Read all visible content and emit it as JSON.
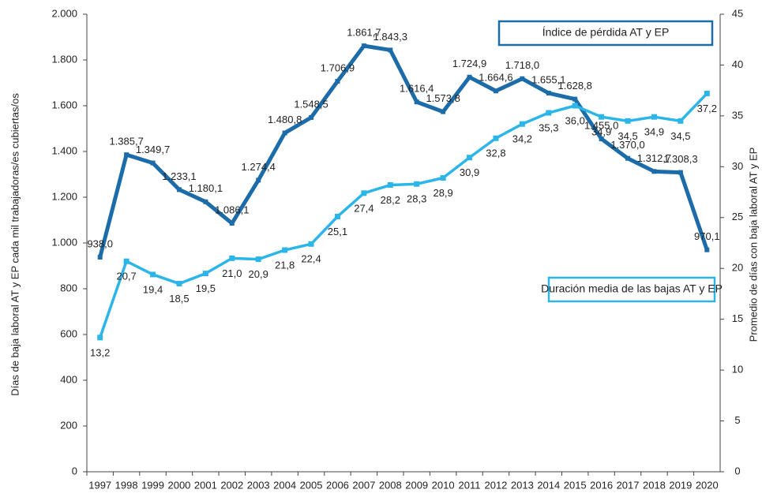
{
  "chart_data": {
    "type": "line",
    "y_label": "Días de baja laboral AT y EP cada mil trabajadoras/es cubiertas/os",
    "y2_label": "Promedio de días con baja laboral AT y EP",
    "categories": [
      "1997",
      "1998",
      "1999",
      "2000",
      "2001",
      "2002",
      "2003",
      "2004",
      "2005",
      "2006",
      "2007",
      "2008",
      "2009",
      "2010",
      "2011",
      "2012",
      "2013",
      "2014",
      "2015",
      "2016",
      "2017",
      "2018",
      "2019",
      "2020"
    ],
    "ylim": [
      0,
      2000
    ],
    "yticks": [
      0,
      200,
      400,
      600,
      800,
      {
        "value": 1000,
        "label": "1.000"
      },
      {
        "value": 1200,
        "label": "1.200"
      },
      {
        "value": 1400,
        "label": "1.400"
      },
      {
        "value": 1600,
        "label": "1.600"
      },
      {
        "value": 1800,
        "label": "1.800"
      },
      {
        "value": 2000,
        "label": "2.000"
      }
    ],
    "y2lim": [
      0,
      45
    ],
    "y2ticks": [
      0,
      5,
      10,
      15,
      20,
      25,
      30,
      35,
      40,
      45
    ],
    "grid": false,
    "series": [
      {
        "name": "Índice de pérdida AT y EP",
        "color": "#1b6ca8",
        "axis": "y",
        "values": [
          938.0,
          1385.7,
          1349.7,
          1233.1,
          1180.1,
          1086.1,
          1274.4,
          1480.8,
          1548.5,
          1706.9,
          1861.7,
          1843.3,
          1616.4,
          1573.8,
          1724.9,
          1664.6,
          1718.0,
          1655.1,
          1628.8,
          1455.0,
          1370.0,
          1312.7,
          1308.3,
          970.1
        ],
        "value_labels": [
          "938,0",
          "1.385,7",
          "1.349,7",
          "1.233,1",
          "1.180,1",
          "1.086,1",
          "1.274,4",
          "1.480,8",
          "1.548,5",
          "1.706,9",
          "1.861,7",
          "1.843,3",
          "1.616,4",
          "1.573,8",
          "1.724,9",
          "1.664,6",
          "1.718,0",
          "1.655,1",
          "1.628,8",
          "1.455,0",
          "1.370,0",
          "1.312,7",
          "1.308,3",
          "970,1"
        ]
      },
      {
        "name": "Duración media de las bajas AT y EP",
        "color": "#2bb5e8",
        "axis": "y2",
        "values": [
          13.2,
          20.7,
          19.4,
          18.5,
          19.5,
          21.0,
          20.9,
          21.8,
          22.4,
          25.1,
          27.4,
          28.2,
          28.3,
          28.9,
          30.9,
          32.8,
          34.2,
          35.3,
          36.0,
          34.9,
          34.5,
          34.9,
          34.5,
          37.2
        ],
        "value_labels": [
          "13,2",
          "20,7",
          "19,4",
          "18,5",
          "19,5",
          "21,0",
          "20,9",
          "21,8",
          "22,4",
          "25,1",
          "27,4",
          "28,2",
          "28,3",
          "28,9",
          "30,9",
          "32,8",
          "34,2",
          "35,3",
          "36,0",
          "34,9",
          "34,5",
          "34,9",
          "34,5",
          "37,2"
        ]
      }
    ]
  }
}
